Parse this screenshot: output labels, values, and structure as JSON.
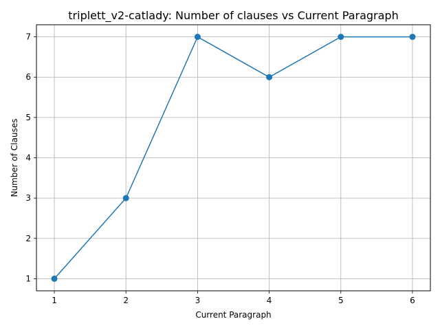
{
  "chart_data": {
    "type": "line",
    "title": "triplett_v2-catlady: Number of clauses vs Current Paragraph",
    "xlabel": "Current Paragraph",
    "ylabel": "Number of Clauses",
    "x": [
      1,
      2,
      3,
      4,
      5,
      6
    ],
    "xticks": [
      "1",
      "2",
      "3",
      "4",
      "5",
      "6"
    ],
    "yticks": [
      "1",
      "2",
      "3",
      "4",
      "5",
      "6",
      "7"
    ],
    "series": [
      {
        "values": [
          1,
          3,
          7,
          6,
          7,
          7
        ]
      }
    ],
    "xlim": [
      0.75,
      6.25
    ],
    "ylim": [
      0.7,
      7.3
    ],
    "grid": true,
    "legend": "none",
    "line_color": "#1f77b4",
    "marker": "circle"
  }
}
